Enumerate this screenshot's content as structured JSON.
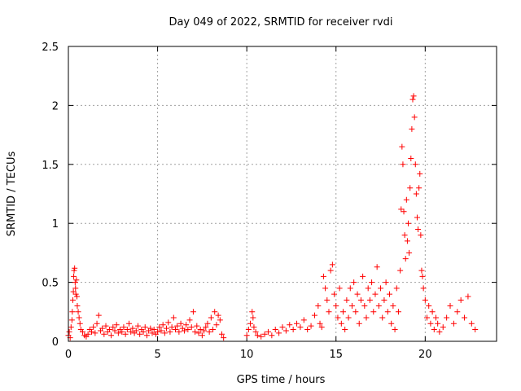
{
  "chart_data": {
    "type": "scatter",
    "title": "Day 049 of 2022, SRMTID for receiver rvdi",
    "xlabel": "GPS time / hours",
    "ylabel": "SRMTID / TECUs",
    "xlim": [
      0,
      24
    ],
    "ylim": [
      0,
      2.5
    ],
    "xticks": [
      0,
      5,
      10,
      15,
      20
    ],
    "xtick_labels": [
      "0",
      "5",
      "10",
      "15",
      "20"
    ],
    "yticks": [
      0,
      0.5,
      1,
      1.5,
      2,
      2.5
    ],
    "ytick_labels": [
      "0",
      "0.5",
      "1",
      "1.5",
      "2",
      "2.5"
    ],
    "grid": true,
    "marker": "+",
    "marker_color": "#ff0000",
    "series": [
      {
        "name": "SRMTID",
        "points": [
          [
            0.0,
            0.05
          ],
          [
            0.05,
            0.08
          ],
          [
            0.1,
            0.03
          ],
          [
            0.15,
            0.12
          ],
          [
            0.2,
            0.18
          ],
          [
            0.22,
            0.25
          ],
          [
            0.25,
            0.35
          ],
          [
            0.28,
            0.42
          ],
          [
            0.3,
            0.55
          ],
          [
            0.32,
            0.6
          ],
          [
            0.35,
            0.62
          ],
          [
            0.38,
            0.5
          ],
          [
            0.4,
            0.45
          ],
          [
            0.42,
            0.4
          ],
          [
            0.45,
            0.52
          ],
          [
            0.48,
            0.38
          ],
          [
            0.5,
            0.3
          ],
          [
            0.55,
            0.25
          ],
          [
            0.6,
            0.2
          ],
          [
            0.65,
            0.15
          ],
          [
            0.7,
            0.1
          ],
          [
            0.8,
            0.08
          ],
          [
            0.9,
            0.05
          ],
          [
            1.0,
            0.04
          ],
          [
            1.1,
            0.06
          ],
          [
            1.2,
            0.1
          ],
          [
            1.3,
            0.08
          ],
          [
            1.4,
            0.12
          ],
          [
            1.5,
            0.07
          ],
          [
            1.6,
            0.15
          ],
          [
            1.7,
            0.22
          ],
          [
            1.8,
            0.09
          ],
          [
            1.9,
            0.11
          ],
          [
            2.0,
            0.06
          ],
          [
            2.1,
            0.13
          ],
          [
            2.2,
            0.08
          ],
          [
            2.3,
            0.1
          ],
          [
            2.4,
            0.05
          ],
          [
            2.5,
            0.12
          ],
          [
            2.6,
            0.09
          ],
          [
            2.7,
            0.14
          ],
          [
            2.8,
            0.07
          ],
          [
            2.9,
            0.1
          ],
          [
            3.0,
            0.08
          ],
          [
            3.1,
            0.12
          ],
          [
            3.2,
            0.06
          ],
          [
            3.3,
            0.1
          ],
          [
            3.4,
            0.15
          ],
          [
            3.5,
            0.08
          ],
          [
            3.6,
            0.11
          ],
          [
            3.7,
            0.07
          ],
          [
            3.8,
            0.09
          ],
          [
            3.9,
            0.13
          ],
          [
            4.0,
            0.06
          ],
          [
            4.1,
            0.1
          ],
          [
            4.2,
            0.08
          ],
          [
            4.3,
            0.12
          ],
          [
            4.4,
            0.05
          ],
          [
            4.5,
            0.09
          ],
          [
            4.6,
            0.11
          ],
          [
            4.7,
            0.07
          ],
          [
            4.8,
            0.1
          ],
          [
            4.9,
            0.06
          ],
          [
            5.0,
            0.08
          ],
          [
            5.1,
            0.12
          ],
          [
            5.2,
            0.09
          ],
          [
            5.3,
            0.14
          ],
          [
            5.4,
            0.07
          ],
          [
            5.5,
            0.11
          ],
          [
            5.6,
            0.16
          ],
          [
            5.7,
            0.08
          ],
          [
            5.8,
            0.12
          ],
          [
            5.9,
            0.2
          ],
          [
            6.0,
            0.1
          ],
          [
            6.1,
            0.13
          ],
          [
            6.2,
            0.08
          ],
          [
            6.3,
            0.15
          ],
          [
            6.4,
            0.11
          ],
          [
            6.5,
            0.09
          ],
          [
            6.6,
            0.14
          ],
          [
            6.7,
            0.1
          ],
          [
            6.8,
            0.18
          ],
          [
            6.9,
            0.12
          ],
          [
            7.0,
            0.25
          ],
          [
            7.1,
            0.08
          ],
          [
            7.2,
            0.13
          ],
          [
            7.3,
            0.07
          ],
          [
            7.4,
            0.1
          ],
          [
            7.5,
            0.05
          ],
          [
            7.6,
            0.09
          ],
          [
            7.7,
            0.12
          ],
          [
            7.8,
            0.15
          ],
          [
            7.9,
            0.08
          ],
          [
            8.0,
            0.2
          ],
          [
            8.1,
            0.1
          ],
          [
            8.2,
            0.25
          ],
          [
            8.3,
            0.14
          ],
          [
            8.4,
            0.22
          ],
          [
            8.5,
            0.18
          ],
          [
            8.6,
            0.06
          ],
          [
            8.7,
            0.03
          ],
          [
            10.0,
            0.05
          ],
          [
            10.1,
            0.1
          ],
          [
            10.2,
            0.15
          ],
          [
            10.3,
            0.25
          ],
          [
            10.35,
            0.2
          ],
          [
            10.4,
            0.12
          ],
          [
            10.5,
            0.08
          ],
          [
            10.6,
            0.05
          ],
          [
            10.8,
            0.04
          ],
          [
            11.0,
            0.06
          ],
          [
            11.2,
            0.08
          ],
          [
            11.4,
            0.05
          ],
          [
            11.6,
            0.1
          ],
          [
            11.8,
            0.07
          ],
          [
            12.0,
            0.12
          ],
          [
            12.2,
            0.09
          ],
          [
            12.4,
            0.14
          ],
          [
            12.6,
            0.1
          ],
          [
            12.8,
            0.15
          ],
          [
            13.0,
            0.12
          ],
          [
            13.2,
            0.18
          ],
          [
            13.4,
            0.1
          ],
          [
            13.6,
            0.13
          ],
          [
            13.8,
            0.22
          ],
          [
            14.0,
            0.3
          ],
          [
            14.1,
            0.15
          ],
          [
            14.2,
            0.12
          ],
          [
            14.3,
            0.55
          ],
          [
            14.4,
            0.45
          ],
          [
            14.5,
            0.35
          ],
          [
            14.6,
            0.25
          ],
          [
            14.7,
            0.6
          ],
          [
            14.8,
            0.65
          ],
          [
            14.9,
            0.4
          ],
          [
            15.0,
            0.3
          ],
          [
            15.1,
            0.2
          ],
          [
            15.2,
            0.45
          ],
          [
            15.3,
            0.15
          ],
          [
            15.4,
            0.25
          ],
          [
            15.5,
            0.1
          ],
          [
            15.6,
            0.35
          ],
          [
            15.7,
            0.2
          ],
          [
            15.8,
            0.45
          ],
          [
            15.9,
            0.3
          ],
          [
            16.0,
            0.5
          ],
          [
            16.1,
            0.25
          ],
          [
            16.2,
            0.4
          ],
          [
            16.3,
            0.15
          ],
          [
            16.4,
            0.35
          ],
          [
            16.5,
            0.55
          ],
          [
            16.6,
            0.3
          ],
          [
            16.7,
            0.2
          ],
          [
            16.8,
            0.45
          ],
          [
            16.9,
            0.35
          ],
          [
            17.0,
            0.5
          ],
          [
            17.1,
            0.25
          ],
          [
            17.2,
            0.4
          ],
          [
            17.3,
            0.63
          ],
          [
            17.4,
            0.3
          ],
          [
            17.5,
            0.45
          ],
          [
            17.6,
            0.2
          ],
          [
            17.7,
            0.35
          ],
          [
            17.8,
            0.5
          ],
          [
            17.9,
            0.25
          ],
          [
            18.0,
            0.4
          ],
          [
            18.1,
            0.15
          ],
          [
            18.2,
            0.3
          ],
          [
            18.3,
            0.1
          ],
          [
            18.4,
            0.45
          ],
          [
            18.5,
            0.25
          ],
          [
            18.6,
            0.6
          ],
          [
            18.65,
            1.12
          ],
          [
            18.7,
            1.65
          ],
          [
            18.75,
            1.5
          ],
          [
            18.8,
            1.1
          ],
          [
            18.85,
            0.9
          ],
          [
            18.9,
            0.7
          ],
          [
            18.95,
            1.2
          ],
          [
            19.0,
            0.85
          ],
          [
            19.05,
            1.0
          ],
          [
            19.1,
            0.75
          ],
          [
            19.15,
            1.3
          ],
          [
            19.2,
            1.55
          ],
          [
            19.25,
            1.8
          ],
          [
            19.3,
            2.05
          ],
          [
            19.35,
            2.08
          ],
          [
            19.4,
            1.9
          ],
          [
            19.45,
            1.5
          ],
          [
            19.5,
            1.25
          ],
          [
            19.55,
            1.05
          ],
          [
            19.6,
            0.95
          ],
          [
            19.65,
            1.3
          ],
          [
            19.7,
            1.42
          ],
          [
            19.75,
            0.9
          ],
          [
            19.8,
            0.6
          ],
          [
            19.85,
            0.55
          ],
          [
            19.9,
            0.45
          ],
          [
            20.0,
            0.35
          ],
          [
            20.1,
            0.2
          ],
          [
            20.2,
            0.3
          ],
          [
            20.3,
            0.15
          ],
          [
            20.4,
            0.25
          ],
          [
            20.5,
            0.1
          ],
          [
            20.6,
            0.2
          ],
          [
            20.7,
            0.15
          ],
          [
            20.8,
            0.08
          ],
          [
            21.0,
            0.12
          ],
          [
            21.2,
            0.2
          ],
          [
            21.4,
            0.3
          ],
          [
            21.6,
            0.15
          ],
          [
            21.8,
            0.25
          ],
          [
            22.0,
            0.35
          ],
          [
            22.2,
            0.2
          ],
          [
            22.4,
            0.38
          ],
          [
            22.6,
            0.15
          ],
          [
            22.8,
            0.1
          ]
        ]
      }
    ]
  }
}
